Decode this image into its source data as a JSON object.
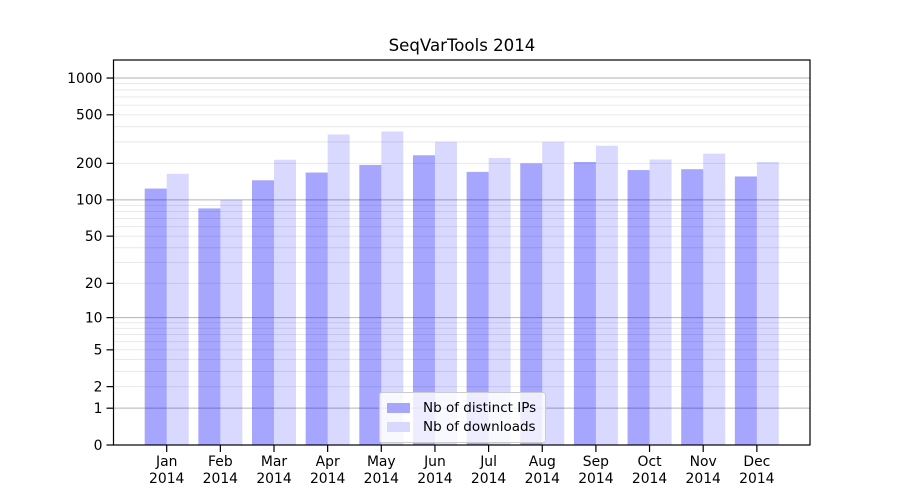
{
  "chart_data": {
    "type": "bar",
    "title": "SeqVarTools 2014",
    "categories": [
      "Jan 2014",
      "Feb 2014",
      "Mar 2014",
      "Apr 2014",
      "May 2014",
      "Jun 2014",
      "Jul 2014",
      "Aug 2014",
      "Sep 2014",
      "Oct 2014",
      "Nov 2014",
      "Dec 2014"
    ],
    "series": [
      {
        "name": "Nb of distinct IPs",
        "color": "#a6a6ff",
        "fill": "rgba(0,0,255,0.35)",
        "values": [
          124,
          85,
          145,
          168,
          194,
          233,
          170,
          200,
          205,
          176,
          179,
          156
        ]
      },
      {
        "name": "Nb of downloads",
        "color": "#d9d9ff",
        "fill": "rgba(0,0,255,0.15)",
        "values": [
          164,
          100,
          214,
          345,
          365,
          300,
          221,
          300,
          279,
          215,
          240,
          205
        ]
      }
    ],
    "xlabel": "",
    "ylabel": "",
    "y_axis": {
      "scale": "log10(value+1)",
      "tick_values": [
        0,
        1,
        2,
        5,
        10,
        20,
        50,
        100,
        200,
        500,
        1000
      ],
      "top_value": 1430
    },
    "grid": {
      "on": true,
      "major_at": [
        1,
        10,
        100,
        1000
      ],
      "major_color": "#b2b2b2",
      "minor_color": "#e7e7e7"
    },
    "legend_position": "bottom-center-inside"
  }
}
